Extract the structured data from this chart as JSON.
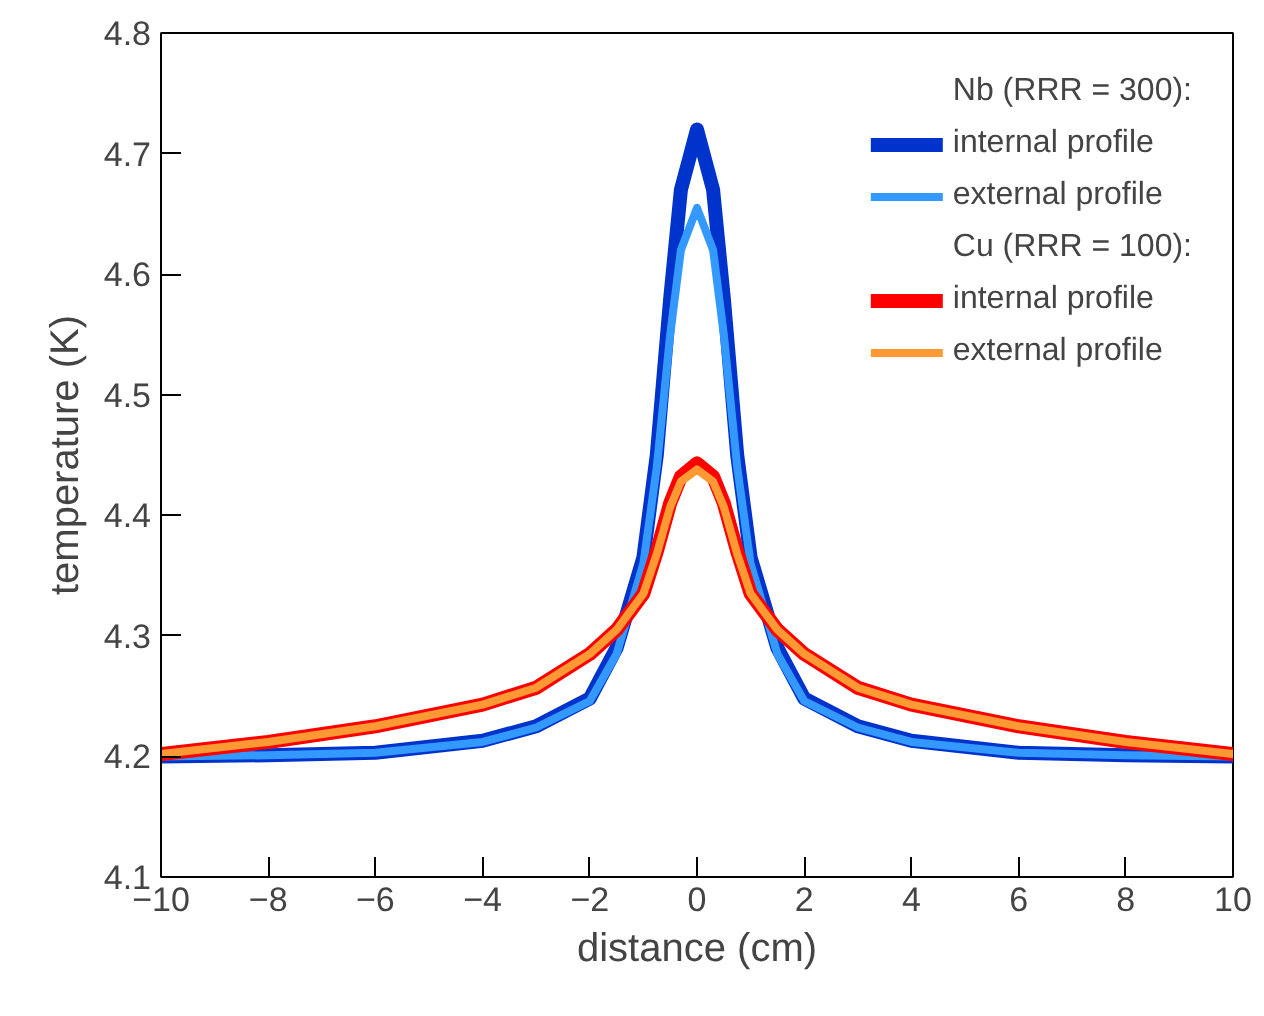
{
  "chart_data": {
    "type": "line",
    "xlabel": "distance (cm)",
    "ylabel": "temperature (K)",
    "x": [
      -10,
      -8,
      -6,
      -4,
      -3,
      -2,
      -1.5,
      -1,
      -0.75,
      -0.5,
      -0.3,
      0,
      0.3,
      0.5,
      0.75,
      1,
      1.5,
      2,
      3,
      4,
      6,
      8,
      10
    ],
    "series": [
      {
        "name": "internal profile",
        "color": "#0033cc",
        "values": [
          4.2,
          4.201,
          4.203,
          4.213,
          4.225,
          4.248,
          4.29,
          4.365,
          4.45,
          4.58,
          4.67,
          4.72,
          4.67,
          4.58,
          4.45,
          4.365,
          4.29,
          4.248,
          4.225,
          4.213,
          4.203,
          4.201,
          4.2
        ]
      },
      {
        "name": "external profile",
        "color": "#3399ff",
        "values": [
          4.2,
          4.201,
          4.203,
          4.212,
          4.224,
          4.246,
          4.285,
          4.36,
          4.44,
          4.55,
          4.62,
          4.655,
          4.62,
          4.55,
          4.44,
          4.36,
          4.285,
          4.246,
          4.224,
          4.212,
          4.203,
          4.201,
          4.2
        ]
      },
      {
        "name": "internal profile",
        "color": "#ff0000",
        "values": [
          4.202,
          4.212,
          4.225,
          4.243,
          4.257,
          4.285,
          4.305,
          4.335,
          4.37,
          4.41,
          4.432,
          4.443,
          4.432,
          4.41,
          4.37,
          4.335,
          4.305,
          4.285,
          4.257,
          4.243,
          4.225,
          4.212,
          4.202
        ]
      },
      {
        "name": "external profile",
        "color": "#ff9933",
        "values": [
          4.202,
          4.212,
          4.225,
          4.243,
          4.257,
          4.285,
          4.305,
          4.335,
          4.368,
          4.407,
          4.428,
          4.438,
          4.428,
          4.407,
          4.368,
          4.335,
          4.305,
          4.285,
          4.257,
          4.243,
          4.225,
          4.212,
          4.202
        ]
      }
    ],
    "annotations": [
      "Nb (RRR = 300):",
      "Cu (RRR = 100):"
    ],
    "xlim": [
      -10,
      10
    ],
    "ylim": [
      4.1,
      4.8
    ],
    "xticks": [
      {
        "value": -10,
        "label": "−10"
      },
      {
        "value": -8,
        "label": "−8"
      },
      {
        "value": -6,
        "label": "−6"
      },
      {
        "value": -4,
        "label": "−4"
      },
      {
        "value": -2,
        "label": "−2"
      },
      0,
      2,
      4,
      6,
      8,
      10
    ],
    "yticks": [
      4.1,
      4.2,
      4.3,
      4.4,
      4.5,
      4.6,
      4.7,
      4.8
    ],
    "legend": "top right",
    "grid": false,
    "line_style": "solid"
  }
}
